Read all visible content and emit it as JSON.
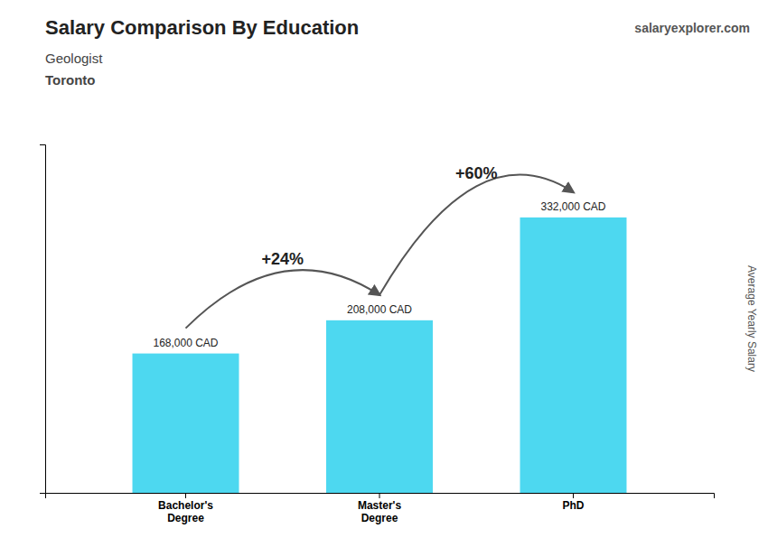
{
  "chart_data": {
    "type": "bar",
    "title": "Salary Comparison By Education",
    "subtitle": [
      "Geologist",
      "Toronto"
    ],
    "y_label": "Average Yearly Salary",
    "categories": [
      "Bachelor's\nDegree",
      "Master's\nDegree",
      "PhD"
    ],
    "values": [
      168000,
      208000,
      332000
    ],
    "value_labels": [
      "168,000 CAD",
      "208,000 CAD",
      "332,000 CAD"
    ],
    "data_labels": true,
    "color": "#4dd8f0",
    "ylim": [
      0,
      420000
    ],
    "tick_labels": "x",
    "grid": false,
    "annotations": [
      {
        "text": "+24%",
        "from": 0,
        "to": 1
      },
      {
        "text": "+60%",
        "from": 1,
        "to": 2
      },
      {
        "text": "salaryexplorer.com"
      }
    ]
  }
}
